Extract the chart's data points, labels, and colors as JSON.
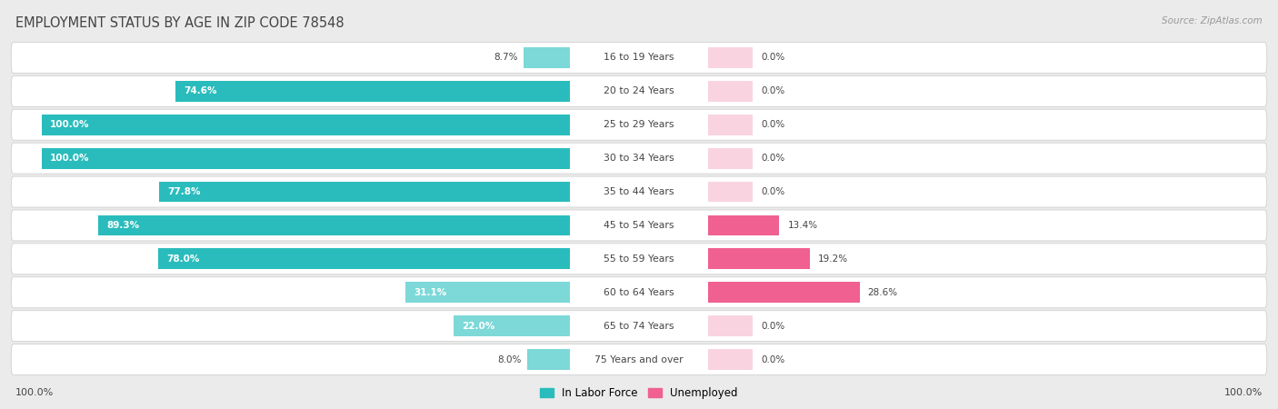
{
  "title": "EMPLOYMENT STATUS BY AGE IN ZIP CODE 78548",
  "source": "Source: ZipAtlas.com",
  "categories": [
    "16 to 19 Years",
    "20 to 24 Years",
    "25 to 29 Years",
    "30 to 34 Years",
    "35 to 44 Years",
    "45 to 54 Years",
    "55 to 59 Years",
    "60 to 64 Years",
    "65 to 74 Years",
    "75 Years and over"
  ],
  "labor_force": [
    8.7,
    74.6,
    100.0,
    100.0,
    77.8,
    89.3,
    78.0,
    31.1,
    22.0,
    8.0
  ],
  "unemployed": [
    0.0,
    0.0,
    0.0,
    0.0,
    0.0,
    13.4,
    19.2,
    28.6,
    0.0,
    0.0
  ],
  "labor_force_color_strong": "#2abcbc",
  "labor_force_color_light": "#7dd8d8",
  "unemployed_color_strong": "#f06090",
  "unemployed_color_light": "#f5b8cc",
  "background_color": "#ebebeb",
  "row_bg_color": "#ffffff",
  "row_border_color": "#d0d0d0",
  "title_color": "#444444",
  "source_color": "#999999",
  "label_dark_color": "#444444",
  "label_white_color": "#ffffff",
  "max_value": 100.0,
  "legend_labor": "In Labor Force",
  "legend_unemployed": "Unemployed",
  "bottom_left_label": "100.0%",
  "bottom_right_label": "100.0%",
  "lf_strong_threshold": 50.0,
  "un_strong_threshold": 5.0
}
